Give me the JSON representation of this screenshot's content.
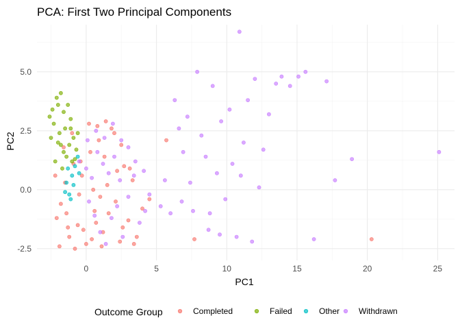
{
  "chart_data": {
    "type": "scatter",
    "title": "PCA: First Two Principal Components",
    "xlabel": "PC1",
    "ylabel": "PC2",
    "xlim": [
      -3.5,
      26.2
    ],
    "ylim": [
      -3.0,
      7.0
    ],
    "x_ticks": [
      0,
      5,
      10,
      15,
      20,
      25
    ],
    "x_tick_labels": [
      "0",
      "5",
      "10",
      "15",
      "20",
      "25"
    ],
    "y_ticks": [
      -2.5,
      0.0,
      2.5,
      5.0
    ],
    "y_tick_labels": [
      "-2.5",
      "0.0",
      "2.5",
      "5.0"
    ],
    "grid": true,
    "legend": {
      "title": "Outcome Group",
      "position": "bottom"
    },
    "series": [
      {
        "name": "Completed",
        "color": "#F8766D",
        "points": [
          [
            -2.1,
            -1.2
          ],
          [
            -1.8,
            -0.6
          ],
          [
            -1.5,
            0.3
          ],
          [
            -1.2,
            -2.0
          ],
          [
            -0.9,
            1.1
          ],
          [
            -0.6,
            -1.5
          ],
          [
            -0.3,
            0.6
          ],
          [
            0.0,
            -2.3
          ],
          [
            0.3,
            1.6
          ],
          [
            0.6,
            -0.9
          ],
          [
            0.9,
            2.1
          ],
          [
            1.2,
            -1.8
          ],
          [
            1.5,
            0.2
          ],
          [
            1.8,
            2.6
          ],
          [
            2.1,
            -0.5
          ],
          [
            2.4,
            -2.2
          ],
          [
            2.7,
            1.0
          ],
          [
            3.0,
            -1.3
          ],
          [
            3.3,
            0.4
          ],
          [
            3.6,
            -2.0
          ],
          [
            4.0,
            -0.8
          ],
          [
            -1.9,
            -2.4
          ],
          [
            -1.4,
            -1.0
          ],
          [
            -0.8,
            -2.5
          ],
          [
            -0.2,
            -1.7
          ],
          [
            0.4,
            -2.1
          ],
          [
            1.0,
            -0.3
          ],
          [
            1.6,
            -1.0
          ],
          [
            2.2,
            0.8
          ],
          [
            -1.6,
            1.8
          ],
          [
            -1.0,
            2.4
          ],
          [
            0.2,
            2.8
          ],
          [
            0.8,
            2.7
          ],
          [
            1.4,
            2.9
          ],
          [
            2.0,
            2.4
          ],
          [
            -0.5,
            -0.2
          ],
          [
            0.5,
            0.0
          ],
          [
            1.1,
            -2.4
          ],
          [
            2.6,
            -1.6
          ],
          [
            3.4,
            -2.3
          ],
          [
            -2.2,
            0.6
          ],
          [
            -1.3,
            -1.6
          ],
          [
            -0.4,
            1.2
          ],
          [
            0.7,
            -1.4
          ],
          [
            1.3,
            1.4
          ],
          [
            2.5,
            1.9
          ],
          [
            3.1,
            0.9
          ],
          [
            4.5,
            -0.4
          ],
          [
            5.7,
            2.1
          ],
          [
            7.7,
            -2.1
          ],
          [
            20.3,
            -2.1
          ]
        ]
      },
      {
        "name": "Failed",
        "color": "#7CAE00",
        "points": [
          [
            -2.4,
            3.4
          ],
          [
            -2.6,
            3.1
          ],
          [
            -2.1,
            3.9
          ],
          [
            -1.8,
            4.1
          ],
          [
            -2.3,
            2.8
          ],
          [
            -1.9,
            2.4
          ],
          [
            -2.0,
            2.0
          ],
          [
            -1.6,
            1.6
          ],
          [
            -2.2,
            1.2
          ],
          [
            -1.7,
            0.9
          ],
          [
            -1.4,
            1.4
          ],
          [
            -1.2,
            1.9
          ],
          [
            -1.5,
            2.6
          ],
          [
            -1.1,
            3.0
          ],
          [
            -1.3,
            3.6
          ],
          [
            -0.9,
            2.2
          ],
          [
            -0.7,
            1.7
          ],
          [
            -1.0,
            1.2
          ],
          [
            -1.8,
            1.9
          ],
          [
            -2.5,
            2.2
          ],
          [
            -1.6,
            3.3
          ],
          [
            -2.0,
            3.6
          ],
          [
            -1.1,
            2.6
          ],
          [
            -0.6,
            2.4
          ],
          [
            -0.8,
            1.3
          ]
        ]
      },
      {
        "name": "Other",
        "color": "#00BFC4",
        "points": [
          [
            -1.4,
            0.3
          ],
          [
            -1.2,
            -0.2
          ],
          [
            -1.0,
            0.6
          ],
          [
            -0.8,
            1.0
          ],
          [
            -1.3,
            0.9
          ],
          [
            -0.6,
            1.4
          ],
          [
            -1.1,
            -0.4
          ],
          [
            -0.9,
            0.2
          ],
          [
            -0.5,
            0.7
          ],
          [
            -1.5,
            -0.1
          ]
        ]
      },
      {
        "name": "Withdrawn",
        "color": "#C77CFF",
        "points": [
          [
            -0.5,
            1.2
          ],
          [
            0.0,
            0.9
          ],
          [
            0.4,
            0.5
          ],
          [
            0.8,
            1.6
          ],
          [
            1.2,
            1.1
          ],
          [
            1.6,
            0.7
          ],
          [
            2.0,
            1.4
          ],
          [
            2.4,
            0.4
          ],
          [
            0.2,
            -0.5
          ],
          [
            0.6,
            -1.1
          ],
          [
            1.0,
            -1.8
          ],
          [
            1.4,
            -2.3
          ],
          [
            1.8,
            -1.2
          ],
          [
            2.2,
            -0.7
          ],
          [
            2.6,
            -2.0
          ],
          [
            3.0,
            -0.3
          ],
          [
            3.4,
            0.6
          ],
          [
            3.8,
            -1.4
          ],
          [
            4.2,
            -0.9
          ],
          [
            0.1,
            2.1
          ],
          [
            0.7,
            2.5
          ],
          [
            1.3,
            2.2
          ],
          [
            1.9,
            2.8
          ],
          [
            2.5,
            2.1
          ],
          [
            3.0,
            1.8
          ],
          [
            3.5,
            1.2
          ],
          [
            4.1,
            0.8
          ],
          [
            4.5,
            -0.2
          ],
          [
            5.3,
            -0.7
          ],
          [
            5.6,
            0.4
          ],
          [
            6.0,
            -1.0
          ],
          [
            6.3,
            3.8
          ],
          [
            6.6,
            2.6
          ],
          [
            6.9,
            1.6
          ],
          [
            7.2,
            3.1
          ],
          [
            7.4,
            0.3
          ],
          [
            7.6,
            -0.9
          ],
          [
            7.9,
            5.0
          ],
          [
            8.2,
            2.3
          ],
          [
            8.5,
            1.4
          ],
          [
            8.7,
            -1.7
          ],
          [
            9.0,
            4.4
          ],
          [
            9.3,
            0.7
          ],
          [
            9.6,
            2.9
          ],
          [
            9.9,
            -0.4
          ],
          [
            10.2,
            3.4
          ],
          [
            10.4,
            1.1
          ],
          [
            10.7,
            -2.0
          ],
          [
            10.9,
            6.7
          ],
          [
            11.2,
            2.0
          ],
          [
            11.5,
            3.8
          ],
          [
            11.8,
            -2.2
          ],
          [
            12.0,
            4.7
          ],
          [
            12.3,
            0.1
          ],
          [
            12.6,
            1.7
          ],
          [
            13.0,
            3.2
          ],
          [
            13.5,
            4.5
          ],
          [
            13.9,
            4.8
          ],
          [
            14.5,
            4.4
          ],
          [
            15.1,
            4.8
          ],
          [
            15.6,
            5.0
          ],
          [
            16.2,
            -2.1
          ],
          [
            17.1,
            4.6
          ],
          [
            17.7,
            0.4
          ],
          [
            18.9,
            1.3
          ],
          [
            25.1,
            1.6
          ],
          [
            8.8,
            -1.0
          ],
          [
            11.0,
            0.6
          ],
          [
            9.5,
            -1.9
          ],
          [
            6.8,
            -0.5
          ]
        ]
      }
    ]
  }
}
